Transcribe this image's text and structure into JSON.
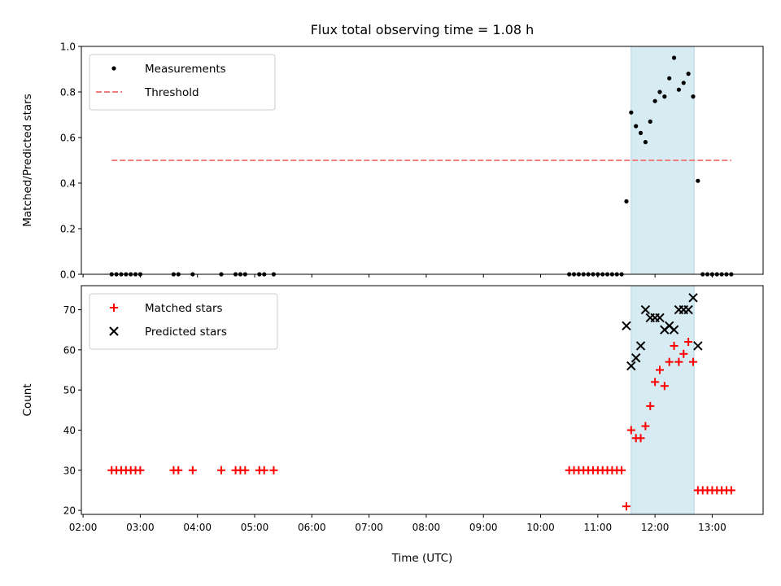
{
  "title": "Flux total observing time = 1.08 h",
  "colors": {
    "highlight": "#add8e6",
    "threshold": "#f08080",
    "measurements": "#000000",
    "matched": "#ff0000",
    "predicted": "#000000"
  },
  "chart_data": [
    {
      "type": "scatter",
      "ylabel": "Matched/Predicted stars",
      "ylim": [
        0,
        1.0
      ],
      "yticks": [
        "0.0",
        "0.2",
        "0.4",
        "0.6",
        "0.8",
        "1.0"
      ],
      "legend_position": "top-left",
      "highlight_span": [
        "11:35",
        "12:41"
      ],
      "series": [
        {
          "name": "Measurements",
          "marker": "dot",
          "points": [
            [
              "02:30",
              0
            ],
            [
              "02:35",
              0
            ],
            [
              "02:40",
              0
            ],
            [
              "02:45",
              0
            ],
            [
              "02:50",
              0
            ],
            [
              "02:55",
              0
            ],
            [
              "03:00",
              0
            ],
            [
              "03:35",
              0
            ],
            [
              "03:40",
              0
            ],
            [
              "03:55",
              0
            ],
            [
              "04:25",
              0
            ],
            [
              "04:40",
              0
            ],
            [
              "04:45",
              0
            ],
            [
              "04:50",
              0
            ],
            [
              "05:05",
              0
            ],
            [
              "05:10",
              0
            ],
            [
              "05:20",
              0
            ],
            [
              "10:30",
              0
            ],
            [
              "10:35",
              0
            ],
            [
              "10:40",
              0
            ],
            [
              "10:45",
              0
            ],
            [
              "10:50",
              0
            ],
            [
              "10:55",
              0
            ],
            [
              "11:00",
              0
            ],
            [
              "11:05",
              0
            ],
            [
              "11:10",
              0
            ],
            [
              "11:15",
              0
            ],
            [
              "11:20",
              0
            ],
            [
              "11:25",
              0
            ],
            [
              "11:30",
              0.32
            ],
            [
              "11:35",
              0.71
            ],
            [
              "11:40",
              0.65
            ],
            [
              "11:45",
              0.62
            ],
            [
              "11:50",
              0.58
            ],
            [
              "11:55",
              0.67
            ],
            [
              "12:00",
              0.76
            ],
            [
              "12:05",
              0.8
            ],
            [
              "12:10",
              0.78
            ],
            [
              "12:15",
              0.86
            ],
            [
              "12:20",
              0.95
            ],
            [
              "12:25",
              0.81
            ],
            [
              "12:30",
              0.84
            ],
            [
              "12:35",
              0.88
            ],
            [
              "12:40",
              0.78
            ],
            [
              "12:45",
              0.41
            ],
            [
              "12:50",
              0
            ],
            [
              "12:55",
              0
            ],
            [
              "13:00",
              0
            ],
            [
              "13:05",
              0
            ],
            [
              "13:10",
              0
            ],
            [
              "13:15",
              0
            ],
            [
              "13:20",
              0
            ]
          ]
        },
        {
          "name": "Threshold",
          "marker": "dashed-line",
          "points": [
            [
              "02:30",
              0.5
            ],
            [
              "13:20",
              0.5
            ]
          ]
        }
      ]
    },
    {
      "type": "scatter",
      "xlabel": "Time (UTC)",
      "ylabel": "Count",
      "ylim": [
        19,
        76
      ],
      "yticks": [
        "20",
        "30",
        "40",
        "50",
        "60",
        "70"
      ],
      "xticks": [
        "02:00",
        "03:00",
        "04:00",
        "05:00",
        "06:00",
        "07:00",
        "08:00",
        "09:00",
        "10:00",
        "11:00",
        "12:00",
        "13:00"
      ],
      "legend_position": "top-left",
      "highlight_span": [
        "11:35",
        "12:41"
      ],
      "series": [
        {
          "name": "Matched stars",
          "marker": "plus",
          "points": [
            [
              "02:30",
              30
            ],
            [
              "02:35",
              30
            ],
            [
              "02:40",
              30
            ],
            [
              "02:45",
              30
            ],
            [
              "02:50",
              30
            ],
            [
              "02:55",
              30
            ],
            [
              "03:00",
              30
            ],
            [
              "03:35",
              30
            ],
            [
              "03:40",
              30
            ],
            [
              "03:55",
              30
            ],
            [
              "04:25",
              30
            ],
            [
              "04:40",
              30
            ],
            [
              "04:45",
              30
            ],
            [
              "04:50",
              30
            ],
            [
              "05:05",
              30
            ],
            [
              "05:10",
              30
            ],
            [
              "05:20",
              30
            ],
            [
              "10:30",
              30
            ],
            [
              "10:35",
              30
            ],
            [
              "10:40",
              30
            ],
            [
              "10:45",
              30
            ],
            [
              "10:50",
              30
            ],
            [
              "10:55",
              30
            ],
            [
              "11:00",
              30
            ],
            [
              "11:05",
              30
            ],
            [
              "11:10",
              30
            ],
            [
              "11:15",
              30
            ],
            [
              "11:20",
              30
            ],
            [
              "11:25",
              30
            ],
            [
              "11:30",
              21
            ],
            [
              "11:35",
              40
            ],
            [
              "11:40",
              38
            ],
            [
              "11:45",
              38
            ],
            [
              "11:50",
              41
            ],
            [
              "11:55",
              46
            ],
            [
              "12:00",
              52
            ],
            [
              "12:05",
              55
            ],
            [
              "12:10",
              51
            ],
            [
              "12:15",
              57
            ],
            [
              "12:20",
              61
            ],
            [
              "12:25",
              57
            ],
            [
              "12:30",
              59
            ],
            [
              "12:35",
              62
            ],
            [
              "12:40",
              57
            ],
            [
              "12:45",
              25
            ],
            [
              "12:50",
              25
            ],
            [
              "12:55",
              25
            ],
            [
              "13:00",
              25
            ],
            [
              "13:05",
              25
            ],
            [
              "13:10",
              25
            ],
            [
              "13:15",
              25
            ],
            [
              "13:20",
              25
            ]
          ]
        },
        {
          "name": "Predicted stars",
          "marker": "x",
          "points": [
            [
              "11:30",
              66
            ],
            [
              "11:35",
              56
            ],
            [
              "11:40",
              58
            ],
            [
              "11:45",
              61
            ],
            [
              "11:50",
              70
            ],
            [
              "11:55",
              68
            ],
            [
              "12:00",
              68
            ],
            [
              "12:05",
              68
            ],
            [
              "12:10",
              65
            ],
            [
              "12:15",
              66
            ],
            [
              "12:20",
              65
            ],
            [
              "12:25",
              70
            ],
            [
              "12:30",
              70
            ],
            [
              "12:35",
              70
            ],
            [
              "12:40",
              73
            ],
            [
              "12:45",
              61
            ]
          ]
        }
      ]
    }
  ]
}
